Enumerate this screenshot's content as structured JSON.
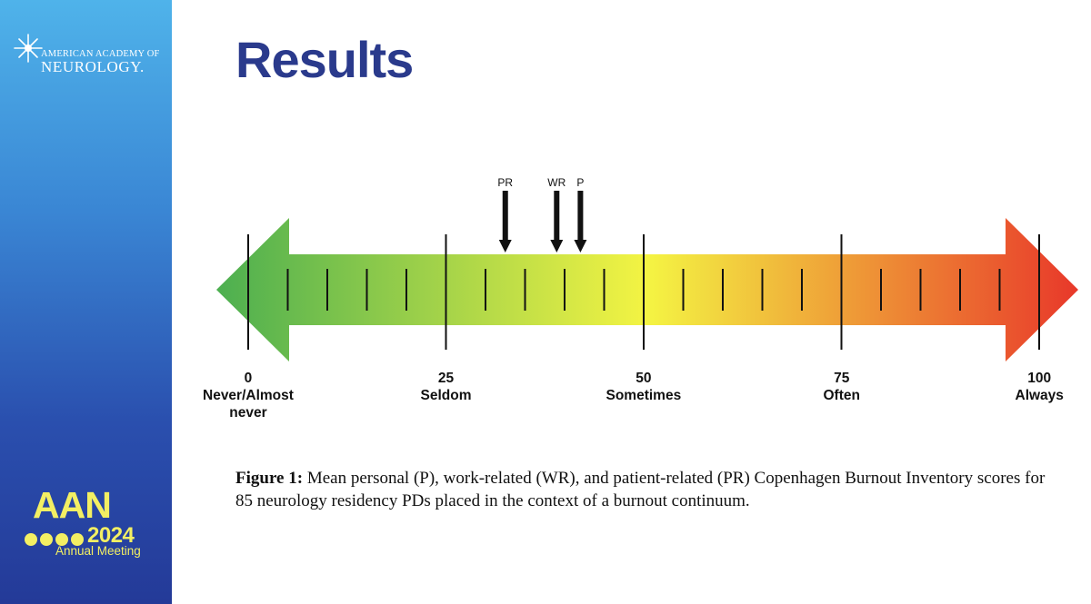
{
  "branding": {
    "org_line1": "AMERICAN ACADEMY OF",
    "org_line2": "NEUROLOGY.",
    "event_acronym": "AAN",
    "event_year": "2024",
    "event_subtitle": "Annual Meeting",
    "brand_yellow": "#f3ef63"
  },
  "slide": {
    "title": "Results",
    "title_color": "#2a3a8c"
  },
  "continuum": {
    "colors": {
      "start": "#4caf50",
      "mid": "#f4f443",
      "end": "#e8382a"
    },
    "scale_min": 0,
    "scale_max": 100,
    "major_ticks": [
      {
        "value": 0,
        "number": "0",
        "label": "Never/Almost never",
        "line1": "Never/Almost",
        "line2": "never"
      },
      {
        "value": 25,
        "number": "25",
        "label": "Seldom"
      },
      {
        "value": 50,
        "number": "50",
        "label": "Sometimes"
      },
      {
        "value": 75,
        "number": "75",
        "label": "Often"
      },
      {
        "value": 100,
        "number": "100",
        "label": "Always"
      }
    ],
    "minor_ticks": [
      5,
      10,
      15,
      20,
      30,
      35,
      40,
      45,
      55,
      60,
      65,
      70,
      80,
      85,
      90,
      95
    ],
    "markers": [
      {
        "label": "PR",
        "value": 32.5
      },
      {
        "label": "WR",
        "value": 39
      },
      {
        "label": "P",
        "value": 42
      }
    ]
  },
  "caption": {
    "bold_prefix": "Figure 1:",
    "text": "Mean personal (P), work-related (WR), and patient-related (PR) Copenhagen Burnout Inventory scores for 85 neurology residency PDs placed in the context of a burnout continuum."
  }
}
